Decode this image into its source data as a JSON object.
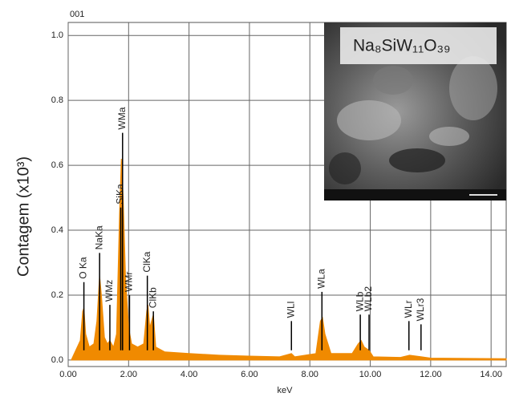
{
  "chart_data": {
    "type": "area",
    "title": "001",
    "y_label": "Contagem (x10³)",
    "x_label": "keV",
    "inset_label": "Na₈SiW₁₁O₃₉",
    "color": "#f08a00",
    "grid": true,
    "xlim": [
      0,
      14.5
    ],
    "ylim": [
      -0.02,
      1.04
    ],
    "xticks": [
      {
        "value": 0,
        "label": "0.00"
      },
      {
        "value": 2,
        "label": "2.00"
      },
      {
        "value": 4,
        "label": "4.00"
      },
      {
        "value": 6,
        "label": "6.00"
      },
      {
        "value": 8,
        "label": "8.00"
      },
      {
        "value": 10,
        "label": "10.00"
      },
      {
        "value": 12,
        "label": "12.00"
      },
      {
        "value": 14,
        "label": "14.00"
      }
    ],
    "yticks": [
      {
        "value": 0,
        "label": "0.0"
      },
      {
        "value": 0.2,
        "label": "0.2"
      },
      {
        "value": 0.4,
        "label": "0.4"
      },
      {
        "value": 0.6,
        "label": "0.6"
      },
      {
        "value": 0.8,
        "label": "0.8"
      },
      {
        "value": 1,
        "label": "1.0"
      }
    ],
    "x": [
      0.1,
      0.2,
      0.3,
      0.4,
      0.48,
      0.52,
      0.58,
      0.7,
      0.85,
      0.95,
      1.04,
      1.1,
      1.2,
      1.3,
      1.38,
      1.5,
      1.6,
      1.7,
      1.76,
      1.82,
      1.9,
      2.0,
      2.1,
      2.3,
      2.5,
      2.6,
      2.64,
      2.7,
      2.82,
      2.9,
      3.2,
      4.0,
      5.0,
      6.0,
      7.0,
      7.39,
      7.5,
      8.2,
      8.35,
      8.42,
      8.5,
      8.7,
      9.4,
      9.6,
      9.7,
      9.8,
      9.96,
      10.1,
      11.0,
      11.3,
      11.7,
      12.0,
      14.5
    ],
    "values": [
      0.0,
      0.02,
      0.04,
      0.06,
      0.15,
      0.16,
      0.08,
      0.04,
      0.05,
      0.12,
      0.26,
      0.2,
      0.07,
      0.05,
      0.06,
      0.04,
      0.08,
      0.45,
      0.62,
      0.5,
      0.25,
      0.1,
      0.05,
      0.04,
      0.05,
      0.15,
      0.17,
      0.1,
      0.14,
      0.04,
      0.025,
      0.02,
      0.015,
      0.012,
      0.01,
      0.02,
      0.01,
      0.02,
      0.12,
      0.13,
      0.08,
      0.02,
      0.02,
      0.05,
      0.06,
      0.04,
      0.03,
      0.01,
      0.008,
      0.015,
      0.01,
      0.006,
      0.004
    ],
    "annotations": [
      {
        "text": "O Ka",
        "x": 0.52,
        "y": 0.24
      },
      {
        "text": "NaKa",
        "x": 1.04,
        "y": 0.33
      },
      {
        "text": "WMz",
        "x": 1.38,
        "y": 0.17
      },
      {
        "text": "SiKa",
        "x": 1.74,
        "y": 0.47
      },
      {
        "text": "WMa",
        "x": 1.8,
        "y": 0.7
      },
      {
        "text": "WMr",
        "x": 2.03,
        "y": 0.2
      },
      {
        "text": "ClKa",
        "x": 2.62,
        "y": 0.26
      },
      {
        "text": "ClKb",
        "x": 2.82,
        "y": 0.15
      },
      {
        "text": "WLl",
        "x": 7.39,
        "y": 0.12
      },
      {
        "text": "WLa",
        "x": 8.4,
        "y": 0.21
      },
      {
        "text": "WLb",
        "x": 9.67,
        "y": 0.14
      },
      {
        "text": "WLb2",
        "x": 9.96,
        "y": 0.14
      },
      {
        "text": "WLr",
        "x": 11.28,
        "y": 0.12
      },
      {
        "text": "WLr3",
        "x": 11.68,
        "y": 0.11
      }
    ]
  }
}
